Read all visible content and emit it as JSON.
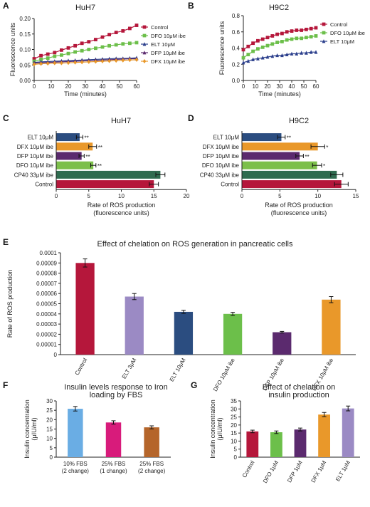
{
  "panels": [
    {
      "letter": "A",
      "chart_data": {
        "type": "line",
        "title": "HuH7",
        "xlabel": "Time (minutes)",
        "ylabel": "Fluorescence units",
        "xlim": [
          0,
          60
        ],
        "ylim": [
          0,
          0.2
        ],
        "xticks": [
          0,
          10,
          20,
          30,
          40,
          50,
          60
        ],
        "yticks": [
          0,
          0.05,
          0.1,
          0.15,
          0.2
        ],
        "ytick_labels": [
          "0.00",
          "0.05",
          "0.10",
          "0.15",
          "0.20"
        ],
        "legend_position": "right",
        "x": [
          0,
          4,
          8,
          12,
          16,
          20,
          24,
          28,
          32,
          36,
          40,
          44,
          48,
          52,
          56,
          60
        ],
        "series": [
          {
            "name": "Control",
            "color": "#b5173b",
            "marker": "square",
            "values": [
              0.07,
              0.08,
              0.085,
              0.09,
              0.098,
              0.105,
              0.112,
              0.12,
              0.125,
              0.132,
              0.14,
              0.148,
              0.155,
              0.16,
              0.168,
              0.178
            ]
          },
          {
            "name": "DFO 10μM ibe",
            "color": "#6cbf4a",
            "marker": "square",
            "values": [
              0.062,
              0.068,
              0.072,
              0.078,
              0.082,
              0.087,
              0.092,
              0.096,
              0.1,
              0.104,
              0.108,
              0.112,
              0.115,
              0.118,
              0.12,
              0.122
            ]
          },
          {
            "name": "ELT 10μM",
            "color": "#2b3f8c",
            "marker": "triangle",
            "values": [
              0.058,
              0.06,
              0.061,
              0.062,
              0.063,
              0.064,
              0.065,
              0.066,
              0.067,
              0.068,
              0.069,
              0.07,
              0.071,
              0.071,
              0.072,
              0.073
            ]
          },
          {
            "name": "DFP 10μM ibe",
            "color": "#5b2a6e",
            "marker": "triangle",
            "values": [
              0.056,
              0.057,
              0.058,
              0.059,
              0.06,
              0.061,
              0.062,
              0.063,
              0.064,
              0.065,
              0.066,
              0.067,
              0.068,
              0.069,
              0.07,
              0.07
            ]
          },
          {
            "name": "DFX 10μM ibe",
            "color": "#e9982a",
            "marker": "diamond",
            "values": [
              0.052,
              0.054,
              0.055,
              0.056,
              0.056,
              0.057,
              0.058,
              0.059,
              0.06,
              0.061,
              0.062,
              0.063,
              0.064,
              0.065,
              0.066,
              0.067
            ]
          }
        ]
      }
    },
    {
      "letter": "B",
      "chart_data": {
        "type": "line",
        "title": "H9C2",
        "xlabel": "Time (minutes)",
        "ylabel": "Fluorescence units",
        "xlim": [
          0,
          60
        ],
        "ylim": [
          0,
          0.8
        ],
        "xticks": [
          0,
          10,
          20,
          30,
          40,
          50,
          60
        ],
        "yticks": [
          0,
          0.2,
          0.4,
          0.6,
          0.8
        ],
        "ytick_labels": [
          "0.0",
          "0.2",
          "0.4",
          "0.6",
          "0.8"
        ],
        "legend_position": "right",
        "x": [
          0,
          4,
          8,
          12,
          16,
          20,
          24,
          28,
          32,
          36,
          40,
          44,
          48,
          52,
          56,
          60
        ],
        "series": [
          {
            "name": "Control",
            "color": "#b5173b",
            "marker": "square",
            "values": [
              0.38,
              0.42,
              0.46,
              0.49,
              0.51,
              0.53,
              0.55,
              0.57,
              0.58,
              0.6,
              0.61,
              0.62,
              0.62,
              0.63,
              0.64,
              0.65
            ]
          },
          {
            "name": "DFO 10μM ibe",
            "color": "#6cbf4a",
            "marker": "square",
            "values": [
              0.28,
              0.32,
              0.36,
              0.39,
              0.41,
              0.43,
              0.45,
              0.47,
              0.48,
              0.5,
              0.51,
              0.52,
              0.52,
              0.53,
              0.54,
              0.55
            ]
          },
          {
            "name": "ELT 10μM",
            "color": "#2b3f8c",
            "marker": "triangle",
            "values": [
              0.22,
              0.24,
              0.26,
              0.27,
              0.28,
              0.29,
              0.3,
              0.31,
              0.31,
              0.32,
              0.33,
              0.33,
              0.34,
              0.34,
              0.35,
              0.35
            ]
          }
        ]
      }
    },
    {
      "letter": "C",
      "chart_data": {
        "type": "bar",
        "orientation": "horizontal",
        "title": "HuH7",
        "xlabel": "Rate of ROS production (fluorescence units)",
        "xlabel_lines": [
          "Rate of ROS production",
          "(fluorescence units)"
        ],
        "xlim": [
          0,
          20
        ],
        "xticks": [
          0,
          5,
          10,
          15,
          20
        ],
        "categories": [
          "ELT 10μM",
          "DFX 10μM ibe",
          "DFP 10μM ibe",
          "DFO 10μM ibe",
          "CP40 33μM ibe",
          "Control"
        ],
        "values": [
          3.6,
          5.6,
          3.9,
          5.7,
          16.0,
          15.0
        ],
        "errors": [
          0.5,
          0.6,
          0.4,
          0.4,
          0.7,
          0.7
        ],
        "significance": [
          "**",
          "**",
          "**",
          "**",
          "",
          ""
        ],
        "colors": [
          "#2b4d80",
          "#e9982a",
          "#5b2a6e",
          "#7cbf4a",
          "#2f6b4f",
          "#b5173b"
        ]
      }
    },
    {
      "letter": "D",
      "chart_data": {
        "type": "bar",
        "orientation": "horizontal",
        "title": "H9C2",
        "xlabel": "Rate of ROS production (fluorescence units)",
        "xlabel_lines": [
          "Rate of ROS production",
          "(fluorescence units)"
        ],
        "xlim": [
          0,
          15
        ],
        "xticks": [
          0,
          5,
          10,
          15
        ],
        "categories": [
          "ELT 10μM",
          "DFX 10μM ibe",
          "DFP 10μM ibe",
          "DFO 10μM ibe",
          "CP40 33μM ibe",
          "Control"
        ],
        "values": [
          5.2,
          10.0,
          7.6,
          9.9,
          12.5,
          13.1
        ],
        "errors": [
          0.5,
          0.9,
          0.5,
          0.6,
          0.8,
          0.9
        ],
        "significance": [
          "**",
          "*",
          "**",
          "*",
          "",
          ""
        ],
        "colors": [
          "#2b4d80",
          "#e9982a",
          "#5b2a6e",
          "#7cbf4a",
          "#2f6b4f",
          "#b5173b"
        ]
      }
    },
    {
      "letter": "E",
      "chart_data": {
        "type": "bar",
        "title": "Effect of chelation on ROS generation in pancreatic cells",
        "xlabel": "",
        "ylabel": "Rate of ROS production",
        "ylim": [
          0,
          0.0001
        ],
        "yticks": [
          0,
          1e-05,
          2e-05,
          3e-05,
          4e-05,
          5e-05,
          6e-05,
          7e-05,
          8e-05,
          9e-05,
          0.0001
        ],
        "ytick_labels": [
          "0",
          "0.00001",
          "0.00002",
          "0.00003",
          "0.00004",
          "0.00005",
          "0.00006",
          "0.00007",
          "0.00008",
          "0.00009",
          "0.0001"
        ],
        "categories": [
          "Control",
          "ELT 3μM",
          "ELT 10μM",
          "DFO 10μM ibe",
          "DFP 10μM ibe",
          "DFX 10μM ibe"
        ],
        "values": [
          9e-05,
          5.7e-05,
          4.2e-05,
          4e-05,
          2.2e-05,
          5.4e-05
        ],
        "errors": [
          4e-06,
          3e-06,
          1.5e-06,
          1.5e-06,
          8e-07,
          3e-06
        ],
        "colors": [
          "#b5173b",
          "#9b8ac4",
          "#2b4d80",
          "#6cbf4a",
          "#5b2a6e",
          "#e9982a"
        ]
      }
    },
    {
      "letter": "F",
      "chart_data": {
        "type": "bar",
        "title": "Insulin levels response to Iron loading by FBS",
        "title_lines": [
          "Insulin levels response to Iron",
          "loading by FBS"
        ],
        "ylabel": "Insulin concentration (μIU/ml)",
        "ylabel_lines": [
          "Insulin concentration",
          "(μIU/ml)"
        ],
        "ylim": [
          0,
          30
        ],
        "yticks": [
          0,
          5,
          10,
          15,
          20,
          25,
          30
        ],
        "categories": [
          "10% FBS (2 change)",
          "25% FBS (1 change)",
          "25% FBS (2 change)"
        ],
        "category_lines": [
          [
            "10% FBS",
            "(2 change)"
          ],
          [
            "25% FBS",
            "(1 change)"
          ],
          [
            "25% FBS",
            "(2 change)"
          ]
        ],
        "values": [
          25.8,
          18.5,
          15.9
        ],
        "errors": [
          1.2,
          0.9,
          0.8
        ],
        "colors": [
          "#6aade4",
          "#d81b7b",
          "#b5652a"
        ]
      }
    },
    {
      "letter": "G",
      "chart_data": {
        "type": "bar",
        "title": "Effect of chelation on insulin production",
        "title_lines": [
          "Effect of chelation on",
          "insulin production"
        ],
        "ylabel": "Insulin concentration (μIU/ml)",
        "ylabel_lines": [
          "Insulin concentration",
          "(μIU/ml)"
        ],
        "ylim": [
          0,
          35
        ],
        "yticks": [
          0,
          5,
          10,
          15,
          20,
          25,
          30,
          35
        ],
        "categories": [
          "Control",
          "DFO 1μM",
          "DFP 1μM",
          "DFX 1μM",
          "ELT 1μM"
        ],
        "values": [
          16.0,
          15.5,
          17.2,
          26.5,
          30.3
        ],
        "errors": [
          0.8,
          0.8,
          0.9,
          1.3,
          1.5
        ],
        "colors": [
          "#b5173b",
          "#6cbf4a",
          "#5b2a6e",
          "#e9982a",
          "#9b8ac4"
        ]
      }
    }
  ]
}
